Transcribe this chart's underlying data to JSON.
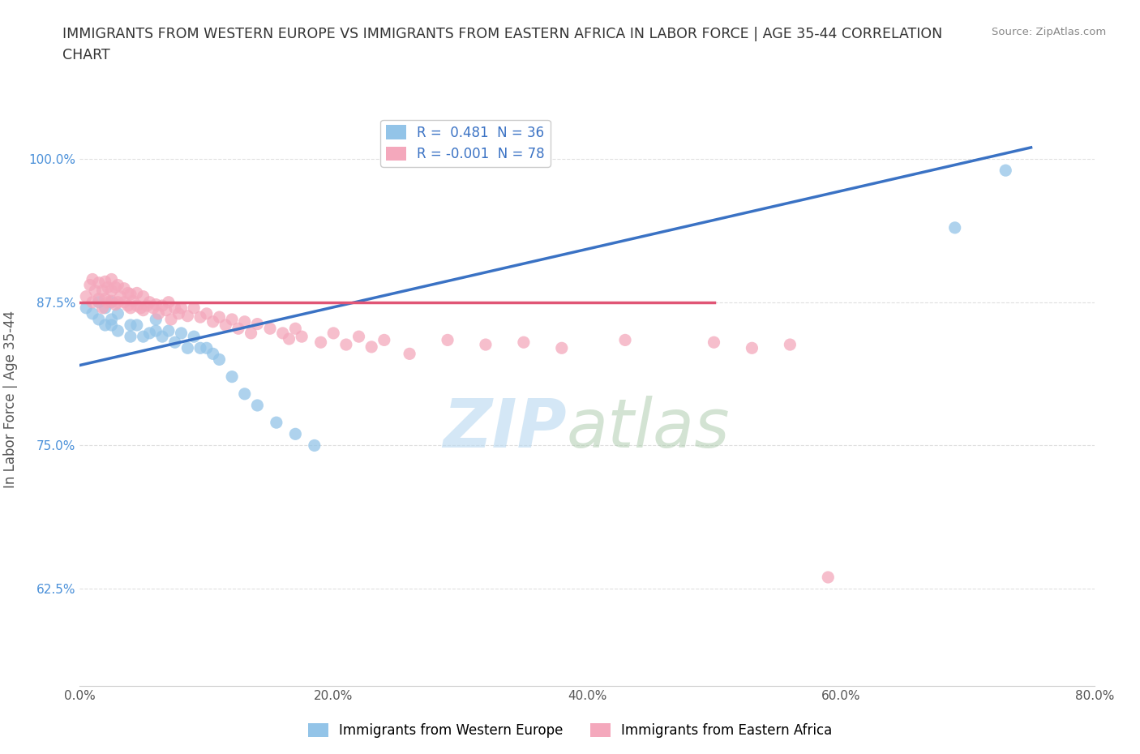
{
  "title": "IMMIGRANTS FROM WESTERN EUROPE VS IMMIGRANTS FROM EASTERN AFRICA IN LABOR FORCE | AGE 35-44 CORRELATION\nCHART",
  "source_text": "Source: ZipAtlas.com",
  "ylabel": "In Labor Force | Age 35-44",
  "xlim": [
    0.0,
    0.8
  ],
  "ylim": [
    0.54,
    1.04
  ],
  "xtick_labels": [
    "0.0%",
    "20.0%",
    "40.0%",
    "60.0%",
    "80.0%"
  ],
  "xtick_vals": [
    0.0,
    0.2,
    0.4,
    0.6,
    0.8
  ],
  "ytick_labels": [
    "62.5%",
    "75.0%",
    "87.5%",
    "100.0%"
  ],
  "ytick_vals": [
    0.625,
    0.75,
    0.875,
    1.0
  ],
  "blue_color": "#93c4e8",
  "pink_color": "#f4a8bc",
  "trend_blue": "#3a72c4",
  "trend_pink": "#e05575",
  "legend_r_blue": "R =  0.481  N = 36",
  "legend_r_pink": "R = -0.001  N = 78",
  "blue_scatter_x": [
    0.005,
    0.01,
    0.015,
    0.015,
    0.02,
    0.02,
    0.025,
    0.025,
    0.025,
    0.03,
    0.03,
    0.04,
    0.04,
    0.045,
    0.05,
    0.055,
    0.06,
    0.06,
    0.065,
    0.07,
    0.075,
    0.08,
    0.085,
    0.09,
    0.095,
    0.1,
    0.105,
    0.11,
    0.12,
    0.13,
    0.14,
    0.155,
    0.17,
    0.185,
    0.69,
    0.73
  ],
  "blue_scatter_y": [
    0.87,
    0.865,
    0.86,
    0.875,
    0.855,
    0.87,
    0.855,
    0.86,
    0.875,
    0.85,
    0.865,
    0.845,
    0.855,
    0.855,
    0.845,
    0.848,
    0.85,
    0.86,
    0.845,
    0.85,
    0.84,
    0.848,
    0.835,
    0.845,
    0.835,
    0.835,
    0.83,
    0.825,
    0.81,
    0.795,
    0.785,
    0.77,
    0.76,
    0.75,
    0.94,
    0.99
  ],
  "pink_scatter_x": [
    0.005,
    0.008,
    0.01,
    0.01,
    0.012,
    0.015,
    0.015,
    0.018,
    0.018,
    0.02,
    0.02,
    0.022,
    0.022,
    0.025,
    0.025,
    0.025,
    0.028,
    0.028,
    0.03,
    0.03,
    0.032,
    0.035,
    0.035,
    0.038,
    0.038,
    0.04,
    0.04,
    0.042,
    0.045,
    0.045,
    0.048,
    0.05,
    0.05,
    0.053,
    0.055,
    0.058,
    0.06,
    0.062,
    0.065,
    0.068,
    0.07,
    0.072,
    0.075,
    0.078,
    0.08,
    0.085,
    0.09,
    0.095,
    0.1,
    0.105,
    0.11,
    0.115,
    0.12,
    0.125,
    0.13,
    0.135,
    0.14,
    0.15,
    0.16,
    0.165,
    0.17,
    0.175,
    0.19,
    0.2,
    0.21,
    0.22,
    0.23,
    0.24,
    0.26,
    0.29,
    0.32,
    0.35,
    0.38,
    0.43,
    0.5,
    0.53,
    0.56,
    0.59
  ],
  "pink_scatter_y": [
    0.88,
    0.89,
    0.875,
    0.895,
    0.885,
    0.878,
    0.892,
    0.87,
    0.885,
    0.878,
    0.893,
    0.875,
    0.888,
    0.876,
    0.885,
    0.895,
    0.873,
    0.888,
    0.875,
    0.89,
    0.88,
    0.875,
    0.887,
    0.872,
    0.883,
    0.87,
    0.882,
    0.876,
    0.872,
    0.883,
    0.87,
    0.868,
    0.88,
    0.872,
    0.875,
    0.87,
    0.873,
    0.865,
    0.872,
    0.868,
    0.875,
    0.86,
    0.87,
    0.865,
    0.87,
    0.863,
    0.87,
    0.862,
    0.865,
    0.858,
    0.862,
    0.855,
    0.86,
    0.852,
    0.858,
    0.848,
    0.856,
    0.852,
    0.848,
    0.843,
    0.852,
    0.845,
    0.84,
    0.848,
    0.838,
    0.845,
    0.836,
    0.842,
    0.83,
    0.842,
    0.838,
    0.84,
    0.835,
    0.842,
    0.84,
    0.835,
    0.838,
    0.635
  ],
  "background_color": "#ffffff",
  "grid_color": "#e0e0e0",
  "blue_trend_x0": 0.0,
  "blue_trend_y0": 0.82,
  "blue_trend_x1": 0.75,
  "blue_trend_y1": 1.01,
  "pink_trend_x0": 0.0,
  "pink_trend_y0": 0.875,
  "pink_trend_x1": 0.5,
  "pink_trend_y1": 0.875
}
